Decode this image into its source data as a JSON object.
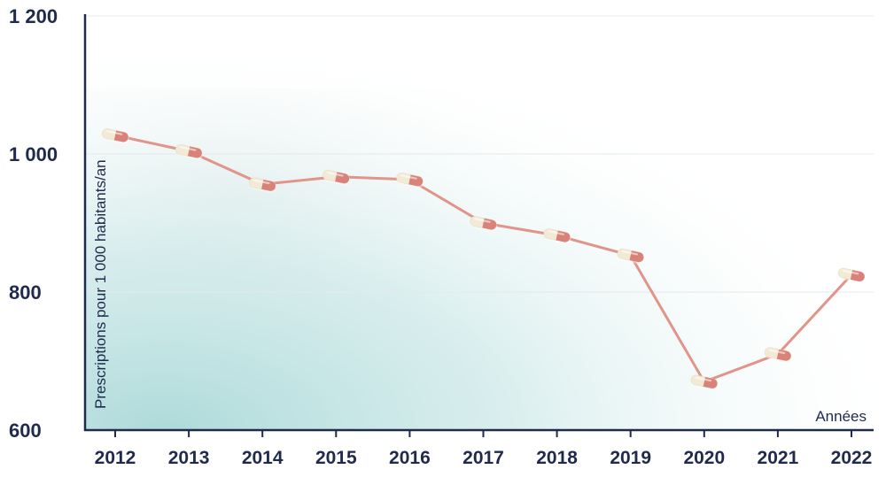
{
  "chart_data": {
    "type": "line",
    "title": "",
    "xlabel": "Années",
    "ylabel": "Prescriptions pour 1 000 habitants/an",
    "x": [
      "2012",
      "2013",
      "2014",
      "2015",
      "2016",
      "2017",
      "2018",
      "2019",
      "2020",
      "2021",
      "2022"
    ],
    "series": [
      {
        "values": [
          1027,
          1004,
          956,
          967,
          963,
          900,
          882,
          853,
          670,
          710,
          825
        ]
      }
    ],
    "ylim": [
      600,
      1200
    ],
    "yticks": [
      600,
      800,
      1000,
      1200
    ],
    "ytick_labels": [
      "600",
      "800",
      "1 000",
      "1 200"
    ],
    "grid": true,
    "line_color": "#e0948a",
    "marker": "pill-capsule-icon",
    "marker_colors": {
      "cap": "#f3ead6",
      "body": "#d9827a"
    },
    "background_gradient_color": "#aad8d8"
  }
}
